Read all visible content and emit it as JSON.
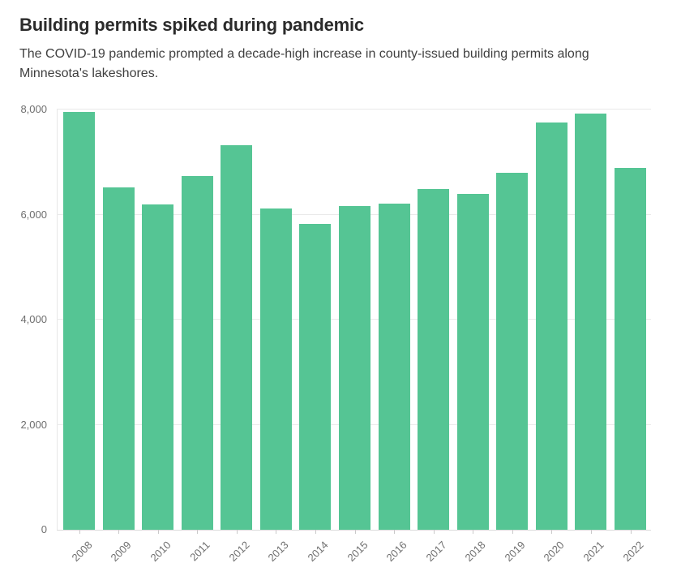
{
  "header": {
    "title": "Building permits spiked during pandemic",
    "subtitle": "The COVID-19 pandemic prompted a decade-high increase in county-issued building permits along Minnesota's lakeshores."
  },
  "chart_data": {
    "type": "bar",
    "title": "Building permits spiked during pandemic",
    "subtitle": "The COVID-19 pandemic prompted a decade-high increase in county-issued building permits along Minnesota's lakeshores.",
    "categories": [
      "2008",
      "2009",
      "2010",
      "2011",
      "2012",
      "2013",
      "2014",
      "2015",
      "2016",
      "2017",
      "2018",
      "2019",
      "2020",
      "2021",
      "2022"
    ],
    "values": [
      7960,
      6520,
      6190,
      6740,
      7320,
      6110,
      5820,
      6170,
      6210,
      6480,
      6390,
      6790,
      7750,
      7930,
      6890
    ],
    "xlabel": "",
    "ylabel": "",
    "ylim": [
      0,
      8000
    ],
    "yticks": [
      0,
      2000,
      4000,
      6000,
      8000
    ],
    "ytick_labels": [
      "0",
      "2,000",
      "4,000",
      "6,000",
      "8,000"
    ],
    "grid": true,
    "legend": false,
    "x_labels_rotated_degrees": -45,
    "colors": {
      "bar": "#55c594",
      "axis_text": "#6f6f6f",
      "gridline": "#eaeaea",
      "baseline": "#dcdcdc",
      "title_text": "#2b2b2b",
      "subtitle_text": "#3f3f3f",
      "background": "#ffffff"
    }
  }
}
